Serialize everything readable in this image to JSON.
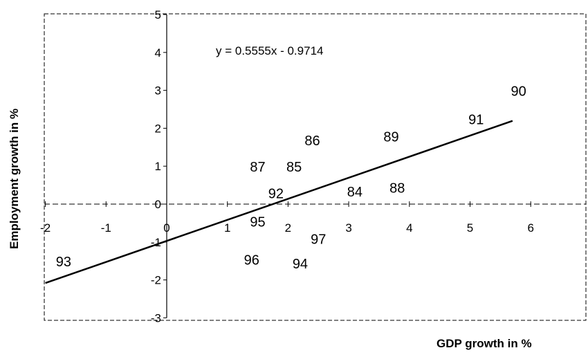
{
  "chart_data": {
    "type": "scatter",
    "title": "",
    "xlabel": "GDP growth in %",
    "ylabel": "Employment growth in %",
    "xlim": [
      -2,
      7
    ],
    "ylim": [
      -3,
      5
    ],
    "x_ticks": [
      "-2",
      "-1",
      "0",
      "1",
      "2",
      "3",
      "4",
      "5",
      "6"
    ],
    "y_ticks": [
      "-3",
      "-2",
      "-1",
      "0",
      "1",
      "2",
      "3",
      "4",
      "5"
    ],
    "points": [
      {
        "label": "84",
        "x": 3.1,
        "y": 0.3
      },
      {
        "label": "85",
        "x": 2.1,
        "y": 0.95
      },
      {
        "label": "86",
        "x": 2.4,
        "y": 1.65
      },
      {
        "label": "87",
        "x": 1.5,
        "y": 0.95
      },
      {
        "label": "88",
        "x": 3.8,
        "y": 0.4
      },
      {
        "label": "89",
        "x": 3.7,
        "y": 1.75
      },
      {
        "label": "90",
        "x": 5.8,
        "y": 2.95
      },
      {
        "label": "91",
        "x": 5.1,
        "y": 2.2
      },
      {
        "label": "92",
        "x": 1.8,
        "y": 0.25
      },
      {
        "label": "93",
        "x": -1.7,
        "y": -1.55
      },
      {
        "label": "94",
        "x": 2.2,
        "y": -1.6
      },
      {
        "label": "95",
        "x": 1.5,
        "y": -0.5
      },
      {
        "label": "96",
        "x": 1.4,
        "y": -1.5
      },
      {
        "label": "97",
        "x": 2.5,
        "y": -0.95
      }
    ],
    "trendline": {
      "equation": "y = 0.5555x - 0.9714",
      "slope": 0.5555,
      "intercept": -0.9714,
      "x_range": [
        -2,
        5.7
      ]
    },
    "grid": false
  }
}
